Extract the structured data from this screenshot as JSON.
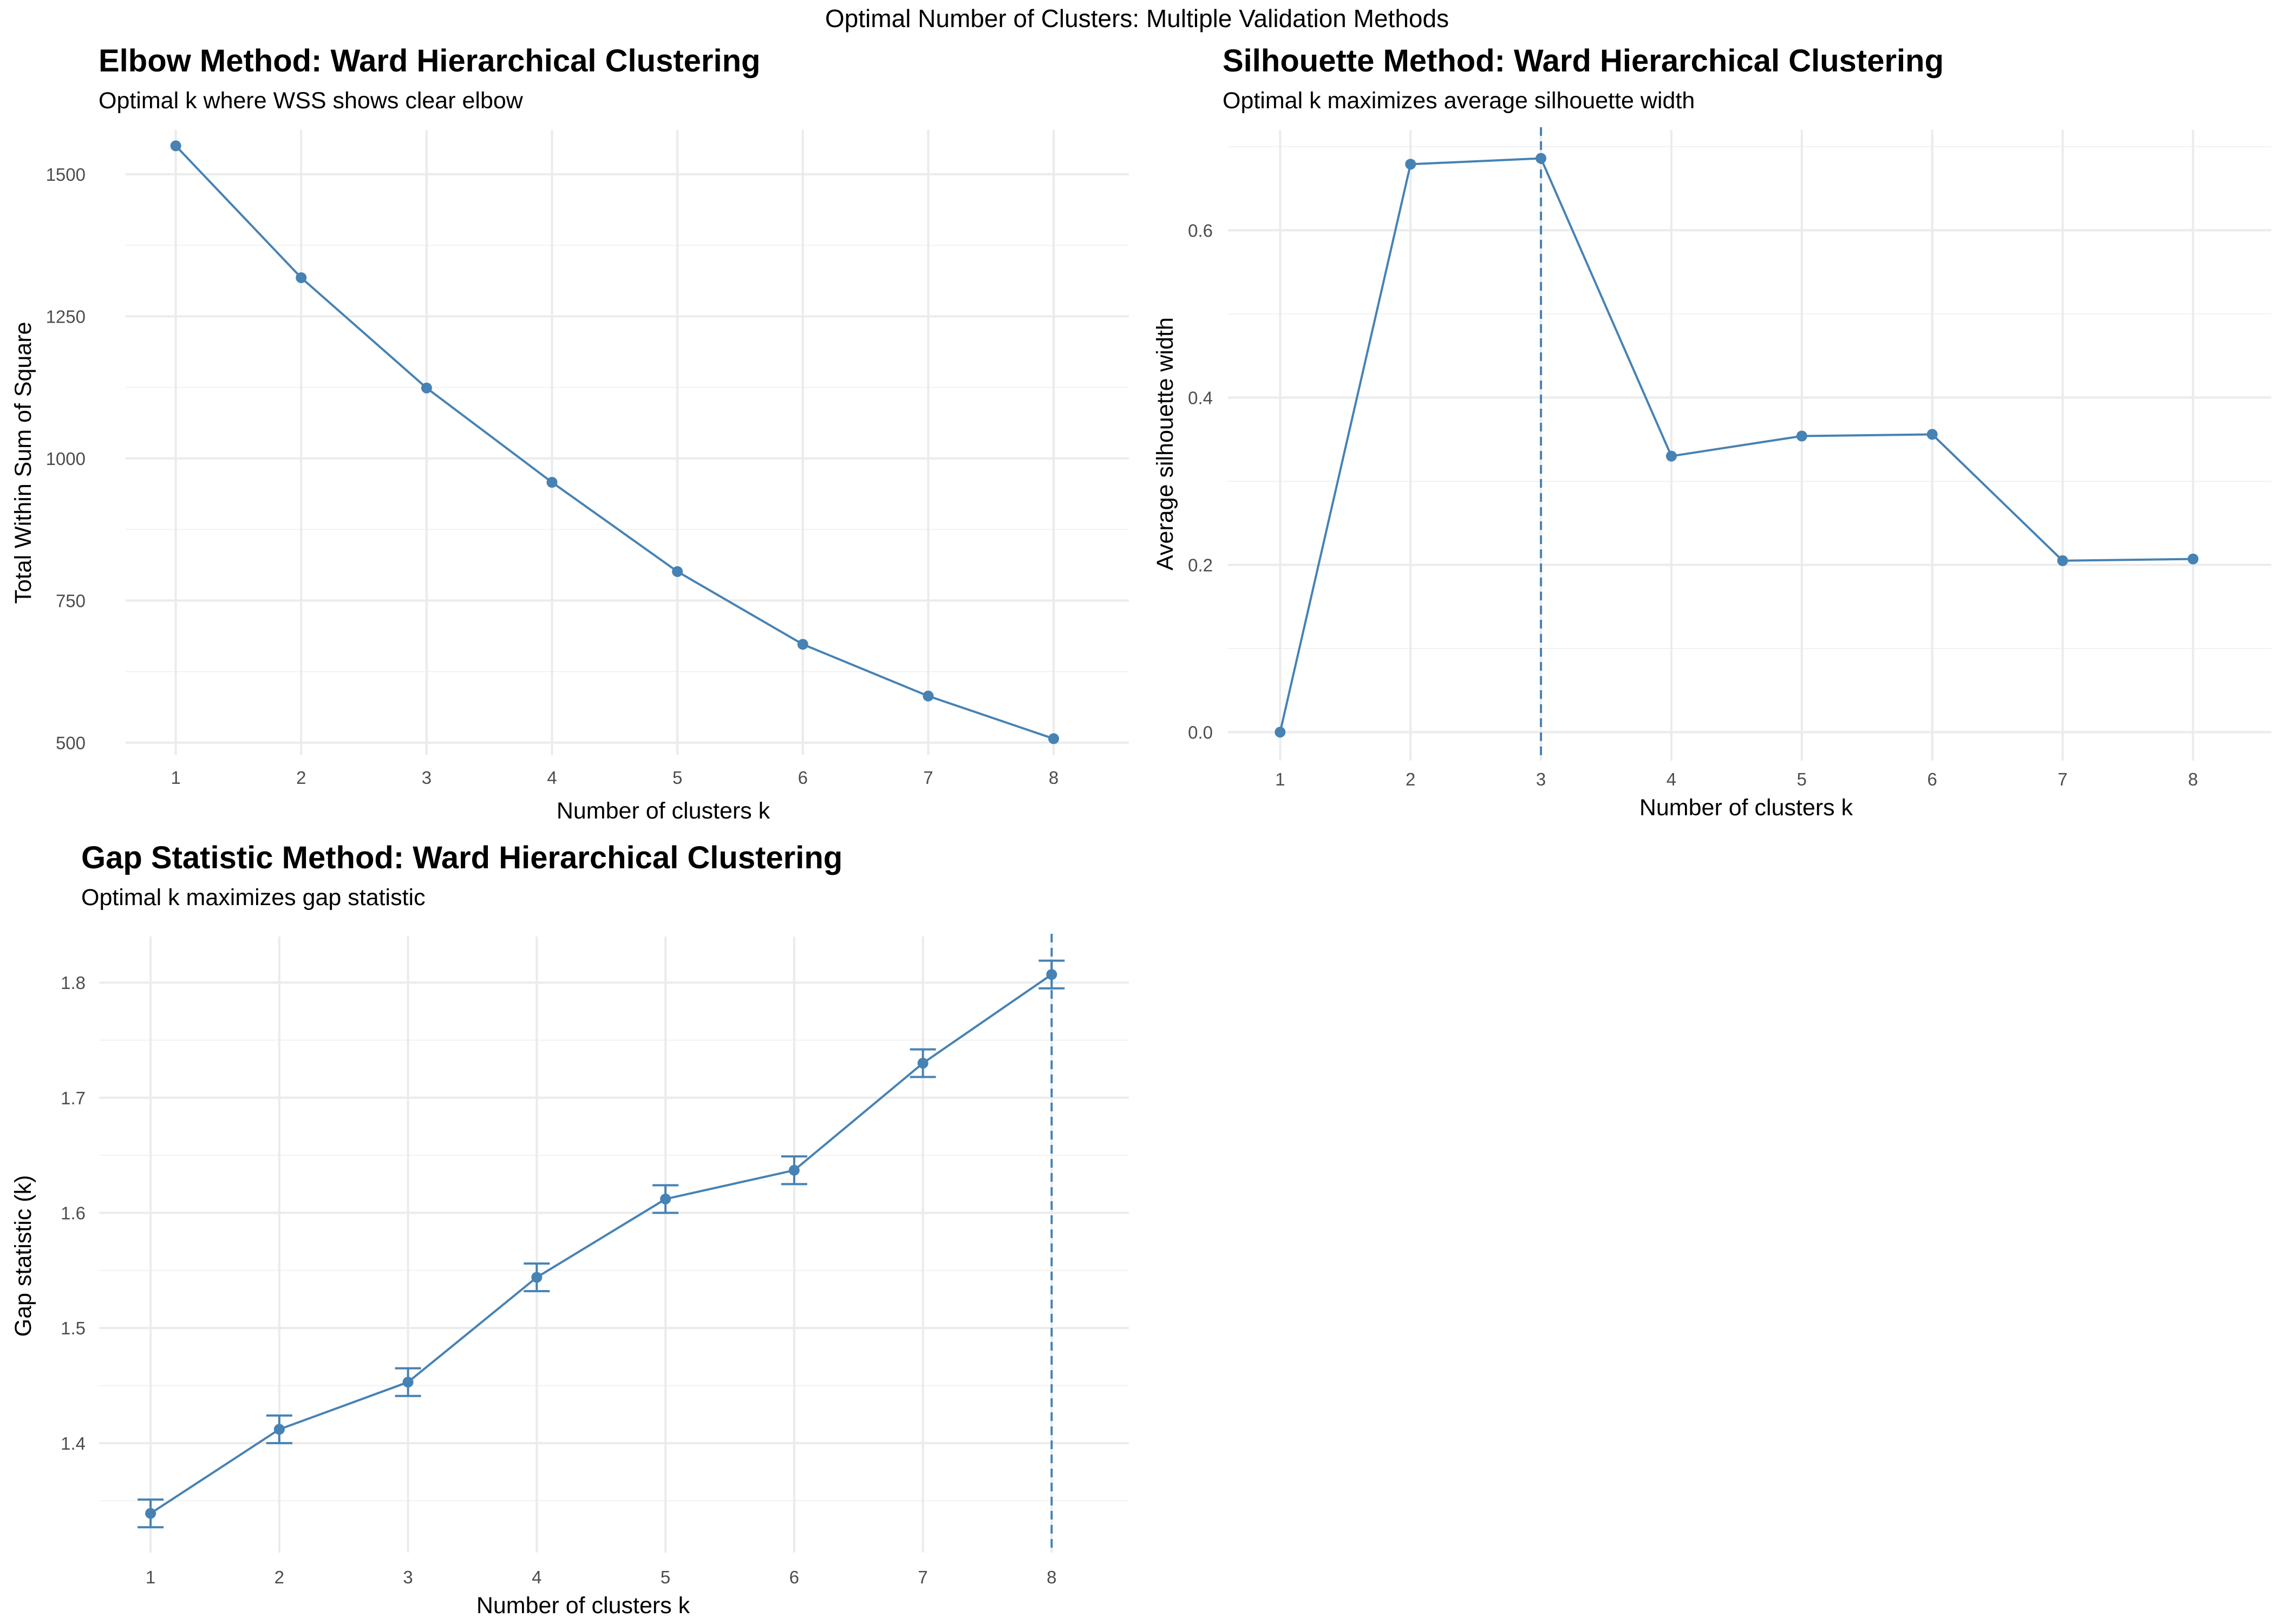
{
  "figure_title": "Optimal Number of Clusters: Multiple Validation Methods",
  "accent_color": "#4682B4",
  "chart_data": [
    {
      "type": "line",
      "title": "Elbow Method: Ward Hierarchical Clustering",
      "subtitle": "Optimal k where WSS shows clear elbow",
      "xlabel": "Number of clusters k",
      "ylabel": "Total Within Sum of Square",
      "x": [
        1,
        2,
        3,
        4,
        5,
        6,
        7,
        8
      ],
      "y": [
        1550,
        1318,
        1124,
        958,
        801,
        673,
        582,
        507
      ],
      "xlim": [
        0.6,
        8.6
      ],
      "ylim": [
        478,
        1578
      ],
      "yticks": [
        500,
        750,
        1000,
        1250,
        1500
      ],
      "yminor": [
        625,
        875,
        1125,
        1375
      ],
      "ytick_decimals": 0,
      "grid": true,
      "legend": "none"
    },
    {
      "type": "line",
      "title": "Silhouette Method: Ward Hierarchical Clustering",
      "subtitle": "Optimal k maximizes average silhouette width",
      "xlabel": "Number of clusters k",
      "ylabel": "Average silhouette width",
      "x": [
        1,
        2,
        3,
        4,
        5,
        6,
        7,
        8
      ],
      "y": [
        0.0,
        0.679,
        0.686,
        0.33,
        0.354,
        0.356,
        0.205,
        0.207
      ],
      "xlim": [
        0.6,
        8.6
      ],
      "ylim": [
        -0.034,
        0.72
      ],
      "yticks": [
        0.0,
        0.2,
        0.4,
        0.6
      ],
      "yminor": [
        0.1,
        0.3,
        0.5,
        0.7
      ],
      "ytick_decimals": 1,
      "optimal_k": 3,
      "grid": true,
      "legend": "none"
    },
    {
      "type": "line",
      "title": "Gap Statistic Method: Ward Hierarchical Clustering",
      "subtitle": "Optimal k maximizes gap statistic",
      "xlabel": "Number of clusters k",
      "ylabel": "Gap statistic (k)",
      "x": [
        1,
        2,
        3,
        4,
        5,
        6,
        7,
        8
      ],
      "y": [
        1.339,
        1.412,
        1.453,
        1.544,
        1.612,
        1.637,
        1.73,
        1.807
      ],
      "ymin": [
        1.327,
        1.4,
        1.441,
        1.532,
        1.6,
        1.625,
        1.718,
        1.795
      ],
      "ymax": [
        1.351,
        1.424,
        1.465,
        1.556,
        1.624,
        1.649,
        1.742,
        1.819
      ],
      "xlim": [
        0.6,
        8.6
      ],
      "ylim": [
        1.305,
        1.84
      ],
      "yticks": [
        1.4,
        1.5,
        1.6,
        1.7,
        1.8
      ],
      "yminor": [
        1.35,
        1.45,
        1.55,
        1.65,
        1.75
      ],
      "ytick_decimals": 1,
      "optimal_k": 8,
      "grid": true,
      "legend": "none"
    }
  ]
}
